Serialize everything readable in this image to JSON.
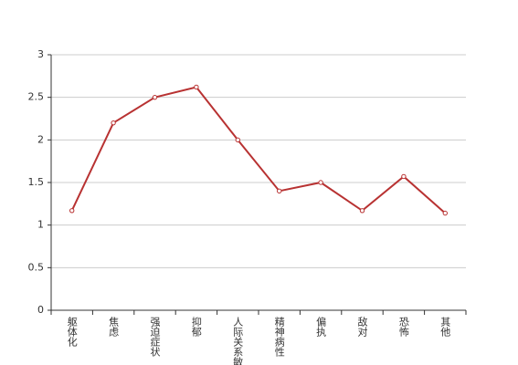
{
  "chart_data": {
    "type": "line",
    "categories": [
      "躯体化",
      "焦虑",
      "强迫症状",
      "抑郁",
      "人际关系敏感",
      "精神病性",
      "偏执",
      "敌对",
      "恐怖",
      "其他"
    ],
    "values": [
      1.17,
      2.2,
      2.5,
      2.62,
      2.0,
      1.4,
      1.5,
      1.17,
      1.57,
      1.14
    ],
    "color": "#b83232",
    "ylim": [
      0,
      3
    ],
    "yticks": [
      0,
      0.5,
      1,
      1.5,
      2,
      2.5,
      3
    ],
    "grid": true
  }
}
